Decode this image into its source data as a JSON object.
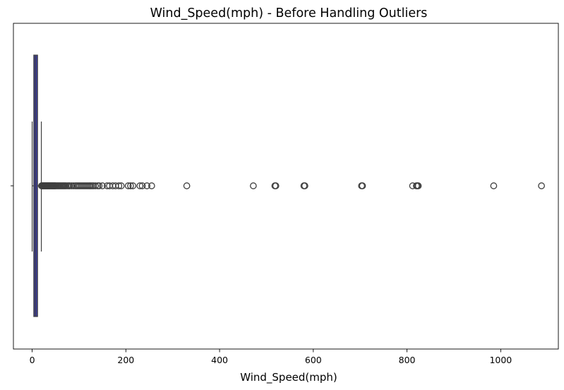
{
  "chart_data": {
    "type": "box",
    "title": "Wind_Speed(mph) - Before Handling Outliers",
    "xlabel": "Wind_Speed(mph)",
    "ylabel": "",
    "xlim": [
      -40,
      1123
    ],
    "xticks": [
      0,
      200,
      400,
      600,
      800,
      1000
    ],
    "grid": false,
    "orientation": "horizontal",
    "box_color": "#3b3b9a",
    "outlier_color": "#3f3f3f",
    "box": {
      "whisker_low": 0,
      "q1": 3.5,
      "median": 7,
      "q3": 11.5,
      "whisker_high": 19.6
    },
    "outliers": [
      20,
      21,
      22,
      23,
      24,
      25,
      26,
      27,
      28,
      29,
      30,
      31,
      32,
      33,
      34,
      35,
      36,
      37,
      38,
      39,
      40,
      41,
      42,
      43,
      44,
      45,
      46,
      47,
      48,
      49,
      50,
      52,
      54,
      56,
      58,
      60,
      62,
      64,
      66,
      68,
      70,
      72,
      75,
      78,
      80,
      84,
      88,
      92,
      95,
      98,
      101,
      104,
      107,
      110,
      113,
      116,
      119,
      122,
      125,
      128,
      131,
      135,
      140,
      143,
      150,
      160,
      165,
      172,
      178,
      185,
      190,
      205,
      210,
      215,
      230,
      235,
      245,
      255,
      330,
      472,
      518,
      520,
      580,
      582,
      703,
      705,
      812,
      820,
      822,
      824,
      985,
      1087
    ]
  }
}
